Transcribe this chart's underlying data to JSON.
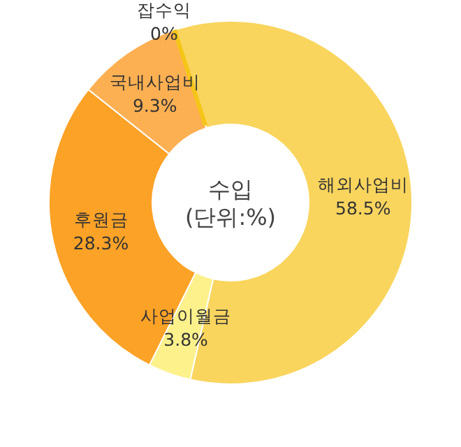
{
  "chart_data": {
    "type": "donut",
    "title": "수입",
    "subtitle": "(단위:%)",
    "categories": [
      "해외사업비",
      "사업이월금",
      "후원금",
      "국내사업비",
      "잡수익"
    ],
    "values": [
      58.5,
      3.8,
      28.3,
      9.3,
      0
    ],
    "value_labels": [
      "58.5%",
      "3.8%",
      "28.3%",
      "9.3%",
      "0%"
    ],
    "colors": [
      "#f9d55e",
      "#fdf18c",
      "#fca227",
      "#fdb052",
      "#f5c518"
    ],
    "legend": false
  }
}
